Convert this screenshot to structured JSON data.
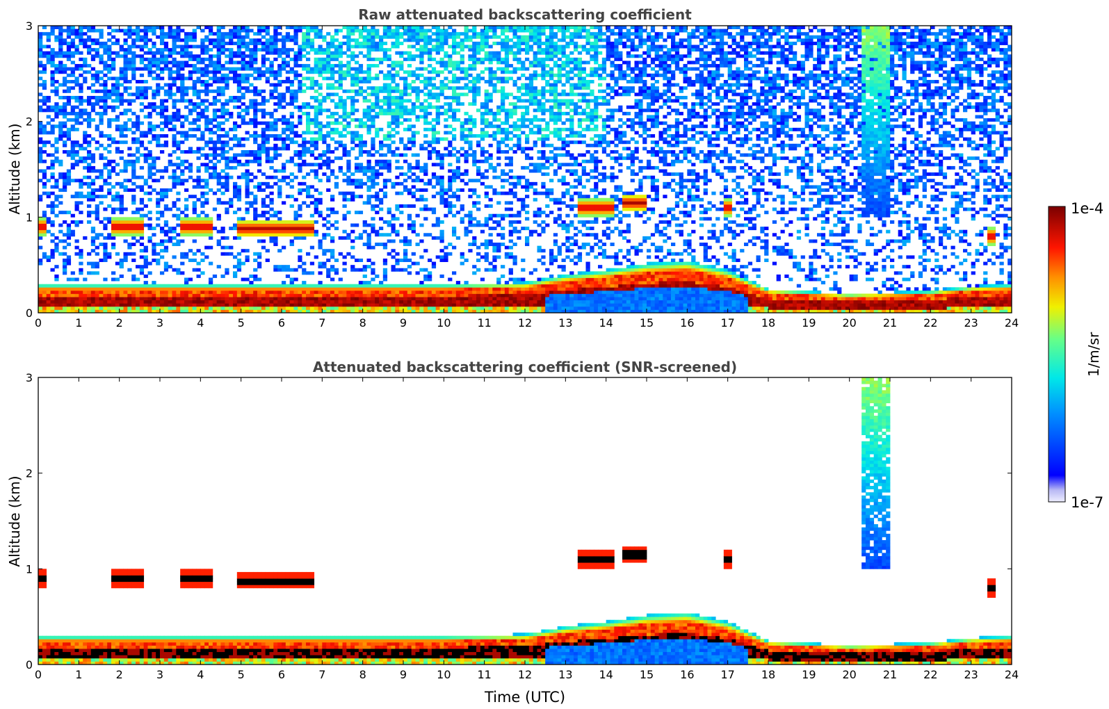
{
  "chart_data": [
    {
      "type": "heatmap",
      "title": "Raw attenuated backscattering coefficient",
      "xlabel": "",
      "ylabel": "Altitude (km)",
      "xlim": [
        0,
        24
      ],
      "ylim": [
        0,
        3
      ],
      "x_ticks": [
        "0",
        "1",
        "2",
        "3",
        "4",
        "5",
        "6",
        "7",
        "8",
        "9",
        "10",
        "11",
        "12",
        "13",
        "14",
        "15",
        "16",
        "17",
        "18",
        "19",
        "20",
        "21",
        "22",
        "23",
        "24"
      ],
      "y_ticks": [
        "0",
        "1",
        "2",
        "3"
      ],
      "colorscale": "jet",
      "color_range": [
        1e-07,
        0.0001
      ],
      "features": {
        "boundary_layer_top_km": [
          [
            0,
            0.3
          ],
          [
            2,
            0.3
          ],
          [
            6,
            0.3
          ],
          [
            10,
            0.3
          ],
          [
            12,
            0.32
          ],
          [
            13,
            0.4
          ],
          [
            14,
            0.45
          ],
          [
            15,
            0.52
          ],
          [
            16,
            0.55
          ],
          [
            17,
            0.45
          ],
          [
            18,
            0.25
          ],
          [
            20,
            0.2
          ],
          [
            22,
            0.23
          ],
          [
            23,
            0.28
          ],
          [
            24,
            0.3
          ]
        ],
        "cloud_layers": [
          {
            "x_start": 0.0,
            "x_end": 0.2,
            "altitude_km": 0.9
          },
          {
            "x_start": 1.8,
            "x_end": 2.6,
            "altitude_km": 0.9
          },
          {
            "x_start": 3.5,
            "x_end": 4.3,
            "altitude_km": 0.9
          },
          {
            "x_start": 4.9,
            "x_end": 6.8,
            "altitude_km": 0.88
          },
          {
            "x_start": 13.3,
            "x_end": 14.2,
            "altitude_km": 1.1
          },
          {
            "x_start": 14.4,
            "x_end": 15.0,
            "altitude_km": 1.15
          },
          {
            "x_start": 16.9,
            "x_end": 17.1,
            "altitude_km": 1.1
          },
          {
            "x_start": 23.4,
            "x_end": 23.6,
            "altitude_km": 0.8
          }
        ],
        "elevated_aerosol_plume": {
          "x_center": 20.7,
          "x_width": 0.7,
          "altitude_range_km": [
            1.0,
            3.0
          ]
        }
      }
    },
    {
      "type": "heatmap",
      "title": "Attenuated backscattering coefficient (SNR-screened)",
      "xlabel": "Time (UTC)",
      "ylabel": "Altitude (km)",
      "xlim": [
        0,
        24
      ],
      "ylim": [
        0,
        3
      ],
      "x_ticks": [
        "0",
        "1",
        "2",
        "3",
        "4",
        "5",
        "6",
        "7",
        "8",
        "9",
        "10",
        "11",
        "12",
        "13",
        "14",
        "15",
        "16",
        "17",
        "18",
        "19",
        "20",
        "21",
        "22",
        "23",
        "24"
      ],
      "y_ticks": [
        "0",
        "1",
        "2",
        "3"
      ],
      "colorscale": "jet",
      "color_range": [
        1e-07,
        0.0001
      ]
    }
  ],
  "colorbar": {
    "label": "1/m/sr",
    "max_label": "1e-4",
    "min_label": "1e-7"
  }
}
